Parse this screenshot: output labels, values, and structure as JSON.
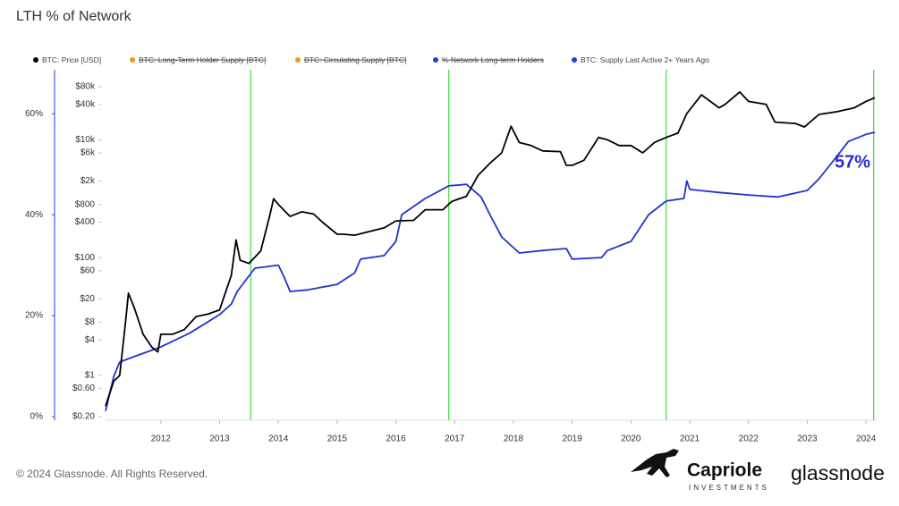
{
  "chart_data": {
    "type": "line",
    "title": "LTH % of Network",
    "footer": "© 2024 Glassnode. All Rights Reserved.",
    "logos": {
      "capriole": "Capriole",
      "capriole_sub": "INVESTMENTS",
      "glassnode": "glassnode"
    },
    "annotation": {
      "text": "57%",
      "color": "#2a2ad6"
    },
    "legend": [
      {
        "name": "BTC: Price [USD]",
        "color": "#000000",
        "hidden": false
      },
      {
        "name": "BTC: Long-Term Holder Supply [BTC]",
        "color": "#f7931a",
        "hidden": true
      },
      {
        "name": "BTC: Circulating Supply [BTC]",
        "color": "#f7931a",
        "hidden": true
      },
      {
        "name": "% Network Long-term Holders",
        "color": "#1f3fe0",
        "hidden": true
      },
      {
        "name": "BTC: Supply Last Active 2+ Years Ago",
        "color": "#1f3fe0",
        "hidden": false
      }
    ],
    "xlim": [
      2011.06,
      2024.18
    ],
    "xticks": [
      2012,
      2013,
      2014,
      2015,
      2016,
      2017,
      2018,
      2019,
      2020,
      2021,
      2022,
      2023,
      2024
    ],
    "ylim": [
      -0.7,
      68.7
    ],
    "yticks": [
      {
        "value": 0,
        "label": "0%"
      },
      {
        "value": 20,
        "label": "20%"
      },
      {
        "value": 40,
        "label": "40%"
      },
      {
        "value": 60,
        "label": "60%"
      }
    ],
    "y2lim": [
      0.174,
      155000
    ],
    "y2log": true,
    "y2ticks": [
      {
        "value": 0.2,
        "label": "$0.20"
      },
      {
        "value": 0.6,
        "label": "$0.60"
      },
      {
        "value": 1,
        "label": "$1"
      },
      {
        "value": 4,
        "label": "$4"
      },
      {
        "value": 8,
        "label": "$8"
      },
      {
        "value": 20,
        "label": "$20"
      },
      {
        "value": 60,
        "label": "$60"
      },
      {
        "value": 100,
        "label": "$100"
      },
      {
        "value": 400,
        "label": "$400"
      },
      {
        "value": 800,
        "label": "$800"
      },
      {
        "value": 2000,
        "label": "$2k"
      },
      {
        "value": 6000,
        "label": "$6k"
      },
      {
        "value": 10000,
        "label": "$10k"
      },
      {
        "value": 40000,
        "label": "$40k"
      },
      {
        "value": 80000,
        "label": "$80k"
      }
    ],
    "vlines": {
      "color": "#3ddc3d",
      "x": [
        2013.53,
        2016.9,
        2020.6,
        2024.13
      ]
    },
    "grid": false,
    "series": [
      {
        "name": "BTC: Supply Last Active 2+ Years Ago",
        "color": "#2233cc",
        "axis": "y",
        "x": [
          2011.06,
          2011.2,
          2011.3,
          2011.5,
          2012.0,
          2012.5,
          2013.0,
          2013.2,
          2013.3,
          2013.6,
          2014.0,
          2014.1,
          2014.2,
          2014.5,
          2015.0,
          2015.3,
          2015.4,
          2015.8,
          2016.0,
          2016.1,
          2016.5,
          2016.9,
          2017.2,
          2017.45,
          2017.6,
          2017.8,
          2018.1,
          2018.5,
          2018.9,
          2019.0,
          2019.5,
          2019.6,
          2020.0,
          2020.3,
          2020.6,
          2020.9,
          2020.95,
          2021.0,
          2021.5,
          2022.0,
          2022.5,
          2023.0,
          2023.2,
          2023.5,
          2023.7,
          2024.0,
          2024.15
        ],
        "values": [
          1.1,
          8,
          10.8,
          11.7,
          13.8,
          16.6,
          20.2,
          22.3,
          24.8,
          29.4,
          30,
          27.6,
          24.8,
          25.1,
          26.2,
          28.5,
          31.2,
          31.9,
          34.7,
          40,
          43.2,
          45.7,
          46,
          43.5,
          40,
          35.6,
          32.4,
          32.9,
          33.3,
          31.2,
          31.5,
          32.9,
          34.7,
          40,
          42.7,
          43.2,
          46.7,
          45,
          44.4,
          43.9,
          43.5,
          44.8,
          47.1,
          51.5,
          54.5,
          55.9,
          56.3
        ]
      },
      {
        "name": "BTC: Price [USD]",
        "color": "#000000",
        "axis": "y2",
        "x": [
          2011.06,
          2011.1,
          2011.2,
          2011.3,
          2011.4,
          2011.45,
          2011.55,
          2011.7,
          2011.85,
          2011.95,
          2012.0,
          2012.2,
          2012.4,
          2012.6,
          2012.8,
          2013.0,
          2013.2,
          2013.28,
          2013.35,
          2013.5,
          2013.7,
          2013.85,
          2013.92,
          2014.0,
          2014.2,
          2014.4,
          2014.6,
          2014.75,
          2015.0,
          2015.1,
          2015.3,
          2015.5,
          2015.8,
          2016.0,
          2016.3,
          2016.5,
          2016.8,
          2016.95,
          2017.2,
          2017.4,
          2017.6,
          2017.8,
          2017.96,
          2018.1,
          2018.3,
          2018.5,
          2018.8,
          2018.9,
          2019.0,
          2019.2,
          2019.45,
          2019.6,
          2019.8,
          2020.0,
          2020.2,
          2020.4,
          2020.6,
          2020.8,
          2020.95,
          2021.2,
          2021.5,
          2021.6,
          2021.85,
          2022.0,
          2022.3,
          2022.45,
          2022.8,
          2022.95,
          2023.2,
          2023.5,
          2023.8,
          2024.0,
          2024.15
        ],
        "values": [
          0.3,
          0.4,
          0.8,
          1,
          8,
          25,
          14,
          5,
          3,
          2.5,
          5,
          5,
          6,
          10,
          11,
          13,
          50,
          200,
          90,
          80,
          130,
          500,
          1000,
          800,
          500,
          600,
          550,
          400,
          250,
          250,
          240,
          270,
          320,
          420,
          430,
          650,
          650,
          900,
          1100,
          2500,
          4000,
          6000,
          17000,
          9000,
          8000,
          6500,
          6300,
          3700,
          3700,
          4500,
          11000,
          10000,
          8000,
          8000,
          6000,
          9000,
          11000,
          13000,
          28000,
          58000,
          35000,
          40000,
          65000,
          45000,
          40000,
          20000,
          19000,
          16500,
          27000,
          30000,
          35000,
          45000,
          52000
        ]
      }
    ]
  }
}
